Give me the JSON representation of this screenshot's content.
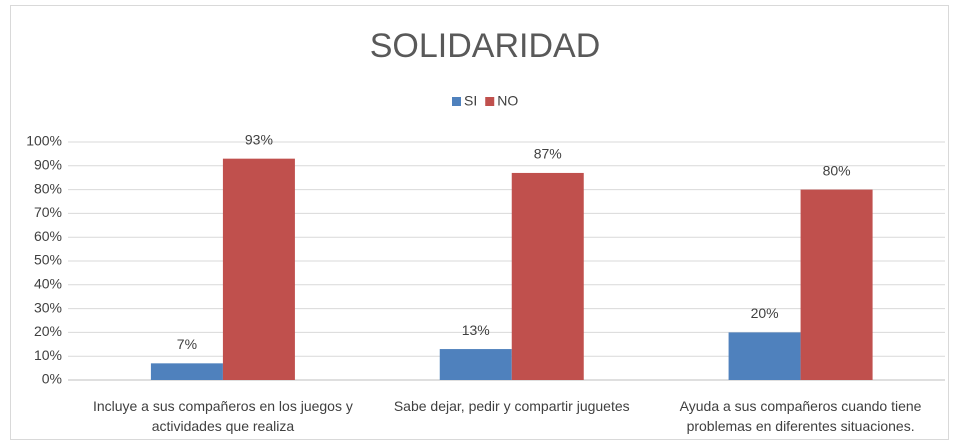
{
  "chart_data": {
    "type": "bar",
    "title": "SOLIDARIDAD",
    "categories": [
      "Incluye a sus compañeros en los juegos y actividades que realiza",
      "Sabe dejar, pedir y compartir juguetes",
      "Ayuda a sus compañeros cuando tiene problemas en diferentes situaciones."
    ],
    "series": [
      {
        "name": "SI",
        "color": "#4f81bd",
        "values": [
          7,
          13,
          20
        ],
        "value_labels": [
          "7%",
          "13%",
          "20%"
        ]
      },
      {
        "name": "NO",
        "color": "#c0504d",
        "values": [
          93,
          87,
          80
        ],
        "value_labels": [
          "93%",
          "87%",
          "80%"
        ]
      }
    ],
    "ylim": [
      0,
      100
    ],
    "yticks": [
      {
        "value": 0,
        "label": "0%"
      },
      {
        "value": 10,
        "label": "10%"
      },
      {
        "value": 20,
        "label": "20%"
      },
      {
        "value": 30,
        "label": "30%"
      },
      {
        "value": 40,
        "label": "40%"
      },
      {
        "value": 50,
        "label": "50%"
      },
      {
        "value": 60,
        "label": "60%"
      },
      {
        "value": 70,
        "label": "70%"
      },
      {
        "value": 80,
        "label": "80%"
      },
      {
        "value": 90,
        "label": "90%"
      },
      {
        "value": 100,
        "label": "100%"
      }
    ],
    "grid": true,
    "legend": "top"
  }
}
